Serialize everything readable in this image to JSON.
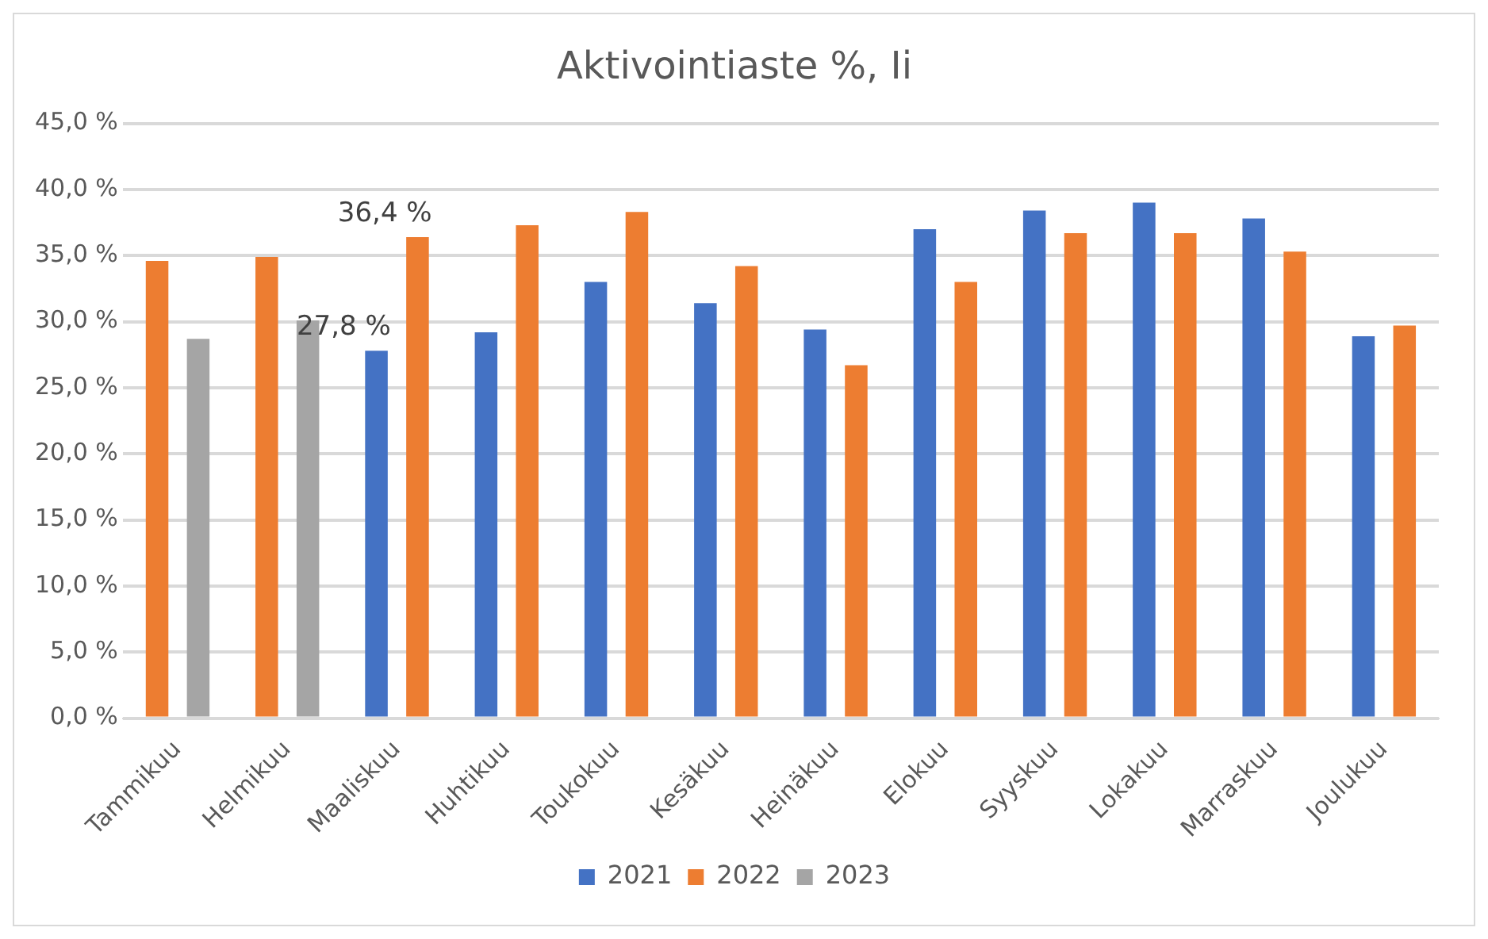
{
  "chart_data": {
    "type": "bar",
    "title": "Aktivointiaste %, Ii",
    "categories": [
      "Tammikuu",
      "Helmikuu",
      "Maaliskuu",
      "Huhtikuu",
      "Toukokuu",
      "Kesäkuu",
      "Heinäkuu",
      "Elokuu",
      "Syyskuu",
      "Lokakuu",
      "Marraskuu",
      "Joulukuu"
    ],
    "series": [
      {
        "name": "2021",
        "color": "#4472c4",
        "values": [
          null,
          null,
          27.8,
          29.2,
          33.0,
          31.4,
          29.4,
          37.0,
          38.4,
          39.0,
          37.8,
          28.9
        ],
        "value_labels": [
          null,
          null,
          "27,8 %",
          null,
          null,
          null,
          null,
          null,
          null,
          null,
          null,
          null
        ]
      },
      {
        "name": "2022",
        "color": "#ed7d31",
        "values": [
          34.6,
          34.9,
          36.4,
          37.3,
          38.3,
          34.2,
          26.7,
          33.0,
          36.7,
          36.7,
          35.3,
          29.7
        ],
        "value_labels": [
          null,
          null,
          "36,4 %",
          null,
          null,
          null,
          null,
          null,
          null,
          null,
          null,
          null
        ]
      },
      {
        "name": "2023",
        "color": "#a5a5a5",
        "values": [
          28.7,
          30.1,
          null,
          null,
          null,
          null,
          null,
          null,
          null,
          null,
          null,
          null
        ]
      }
    ],
    "ylim": [
      0,
      45
    ],
    "yticks": [
      {
        "value": 0,
        "label": "0,0 %"
      },
      {
        "value": 5,
        "label": "5,0 %"
      },
      {
        "value": 10,
        "label": "10,0 %"
      },
      {
        "value": 15,
        "label": "15,0 %"
      },
      {
        "value": 20,
        "label": "20,0 %"
      },
      {
        "value": 25,
        "label": "25,0 %"
      },
      {
        "value": 30,
        "label": "30,0 %"
      },
      {
        "value": 35,
        "label": "35,0 %"
      },
      {
        "value": 40,
        "label": "40,0 %"
      },
      {
        "value": 45,
        "label": "45,0 %"
      }
    ],
    "grid": "y",
    "legend": "bottom"
  }
}
